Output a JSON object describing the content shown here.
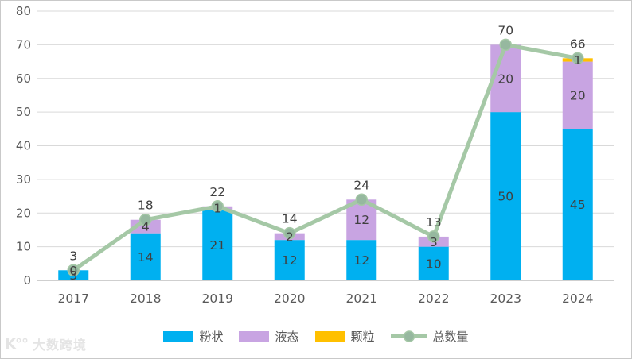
{
  "chart_data": {
    "type": "bar",
    "stacked": true,
    "title": "",
    "categories": [
      "2017",
      "2018",
      "2019",
      "2020",
      "2021",
      "2022",
      "2023",
      "2024"
    ],
    "series": [
      {
        "name": "粉状",
        "type": "bar",
        "color": "#00B0F0",
        "values": [
          3,
          14,
          21,
          12,
          12,
          10,
          50,
          45
        ]
      },
      {
        "name": "液态",
        "type": "bar",
        "color": "#C8A4E2",
        "values": [
          0,
          4,
          1,
          2,
          12,
          3,
          20,
          20
        ]
      },
      {
        "name": "颗粒",
        "type": "bar",
        "color": "#FFC000",
        "values": [
          null,
          null,
          null,
          null,
          null,
          null,
          null,
          1
        ]
      },
      {
        "name": "总数量",
        "type": "line",
        "color": "#A5C8A6",
        "marker_color": "#96B89F",
        "values": [
          3,
          18,
          22,
          14,
          24,
          13,
          70,
          66
        ]
      }
    ],
    "ylim": [
      0,
      80
    ],
    "ytick_step": 10,
    "grid": true,
    "legend_position": "bottom",
    "axis_text_color": "#595959",
    "data_label_color": "#404040",
    "gridline_color": "#D9D9D9",
    "axis_line_color": "#BFBFBF"
  },
  "watermark": {
    "logo": "K°°",
    "text": "大数跨境"
  }
}
